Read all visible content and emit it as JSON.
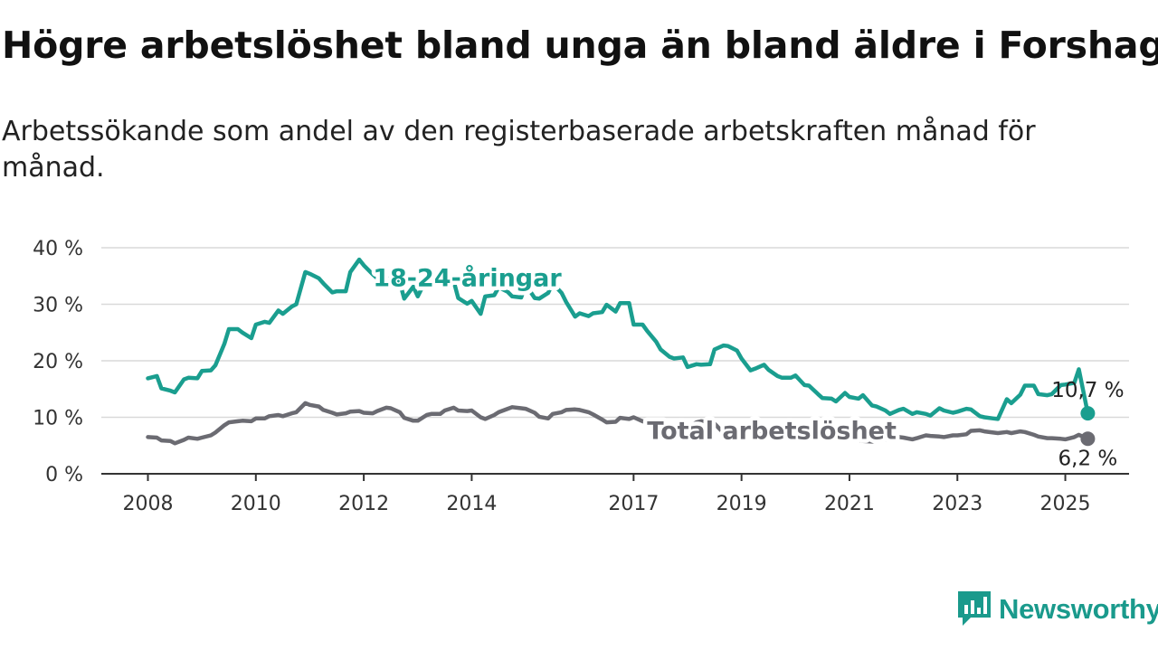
{
  "header": {
    "title": "Högre arbetslöshet bland unga än bland äldre i Forshaga",
    "subtitle": "Arbetssökande som andel av den registerbaserade arbetskraften månad för månad."
  },
  "brand": {
    "name": "Newsworthy",
    "color": "#1a9a8c"
  },
  "chart_data": {
    "type": "line",
    "title": "Högre arbetslöshet bland unga än bland äldre i Forshaga",
    "subtitle": "Arbetssökande som andel av den registerbaserade arbetskraften månad för månad.",
    "x_ticks": [
      "2008",
      "2010",
      "2012",
      "2014",
      "2017",
      "2019",
      "2021",
      "2023",
      "2025"
    ],
    "xlim": [
      "2008-01",
      "2025-06"
    ],
    "y_ticks": [
      "0 %",
      "10 %",
      "20 %",
      "30 %",
      "40 %"
    ],
    "ylim": [
      0,
      40
    ],
    "grid": true,
    "legend": "none (series labelled directly on the lines)",
    "series": [
      {
        "name": "18-24-åringar",
        "color": "#1a9e8f",
        "end_label": "10,7 %",
        "points": [
          [
            "2008-01",
            16.9
          ],
          [
            "2008-03",
            17.3
          ],
          [
            "2008-04",
            15.1
          ],
          [
            "2008-06",
            14.7
          ],
          [
            "2008-07",
            14.4
          ],
          [
            "2008-09",
            16.7
          ],
          [
            "2008-10",
            17.0
          ],
          [
            "2008-12",
            16.9
          ],
          [
            "2009-01",
            18.2
          ],
          [
            "2009-03",
            18.3
          ],
          [
            "2009-04",
            19.2
          ],
          [
            "2009-06",
            23.0
          ],
          [
            "2009-07",
            25.6
          ],
          [
            "2009-09",
            25.6
          ],
          [
            "2009-10",
            25.0
          ],
          [
            "2009-12",
            24.0
          ],
          [
            "2010-01",
            26.4
          ],
          [
            "2010-03",
            26.9
          ],
          [
            "2010-04",
            26.7
          ],
          [
            "2010-06",
            28.9
          ],
          [
            "2010-07",
            28.3
          ],
          [
            "2010-09",
            29.6
          ],
          [
            "2010-10",
            30.0
          ],
          [
            "2010-12",
            35.7
          ],
          [
            "2011-01",
            35.4
          ],
          [
            "2011-03",
            34.6
          ],
          [
            "2011-04",
            33.7
          ],
          [
            "2011-06",
            32.1
          ],
          [
            "2011-07",
            32.3
          ],
          [
            "2011-09",
            32.3
          ],
          [
            "2011-10",
            35.7
          ],
          [
            "2011-12",
            37.9
          ],
          [
            "2012-01",
            36.9
          ],
          [
            "2012-03",
            35.3
          ],
          [
            "2012-04",
            34.6
          ],
          [
            "2012-06",
            33.6
          ],
          [
            "2012-07",
            34.9
          ],
          [
            "2012-09",
            33.9
          ],
          [
            "2012-10",
            31.0
          ],
          [
            "2012-12",
            33.1
          ],
          [
            "2013-01",
            31.4
          ],
          [
            "2013-03",
            34.6
          ],
          [
            "2013-04",
            35.9
          ],
          [
            "2013-06",
            35.0
          ],
          [
            "2013-07",
            35.6
          ],
          [
            "2013-09",
            34.1
          ],
          [
            "2013-10",
            31.1
          ],
          [
            "2013-12",
            30.1
          ],
          [
            "2014-01",
            30.6
          ],
          [
            "2014-03",
            28.3
          ],
          [
            "2014-04",
            31.4
          ],
          [
            "2014-06",
            31.6
          ],
          [
            "2014-07",
            33.0
          ],
          [
            "2014-09",
            32.2
          ],
          [
            "2014-10",
            31.4
          ],
          [
            "2014-12",
            31.2
          ],
          [
            "2015-01",
            33.5
          ],
          [
            "2015-03",
            31.1
          ],
          [
            "2015-04",
            31.0
          ],
          [
            "2015-06",
            32.0
          ],
          [
            "2015-07",
            33.7
          ],
          [
            "2015-09",
            32.0
          ],
          [
            "2015-10",
            30.4
          ],
          [
            "2015-12",
            27.8
          ],
          [
            "2016-01",
            28.4
          ],
          [
            "2016-03",
            27.9
          ],
          [
            "2016-04",
            28.4
          ],
          [
            "2016-06",
            28.6
          ],
          [
            "2016-07",
            29.9
          ],
          [
            "2016-09",
            28.7
          ],
          [
            "2016-10",
            30.2
          ],
          [
            "2016-12",
            30.2
          ],
          [
            "2017-01",
            26.4
          ],
          [
            "2017-03",
            26.4
          ],
          [
            "2017-04",
            25.3
          ],
          [
            "2017-06",
            23.4
          ],
          [
            "2017-07",
            22.0
          ],
          [
            "2017-09",
            20.7
          ],
          [
            "2017-10",
            20.4
          ],
          [
            "2017-12",
            20.6
          ],
          [
            "2018-01",
            18.9
          ],
          [
            "2018-03",
            19.4
          ],
          [
            "2018-04",
            19.3
          ],
          [
            "2018-06",
            19.4
          ],
          [
            "2018-07",
            22.0
          ],
          [
            "2018-09",
            22.7
          ],
          [
            "2018-10",
            22.6
          ],
          [
            "2018-12",
            21.8
          ],
          [
            "2019-01",
            20.4
          ],
          [
            "2019-03",
            18.3
          ],
          [
            "2019-04",
            18.6
          ],
          [
            "2019-06",
            19.3
          ],
          [
            "2019-07",
            18.4
          ],
          [
            "2019-09",
            17.3
          ],
          [
            "2019-10",
            17.0
          ],
          [
            "2019-12",
            17.0
          ],
          [
            "2020-01",
            17.4
          ],
          [
            "2020-03",
            15.7
          ],
          [
            "2020-04",
            15.6
          ],
          [
            "2020-06",
            14.1
          ],
          [
            "2020-07",
            13.4
          ],
          [
            "2020-09",
            13.3
          ],
          [
            "2020-10",
            12.8
          ],
          [
            "2020-12",
            14.3
          ],
          [
            "2021-01",
            13.6
          ],
          [
            "2021-03",
            13.3
          ],
          [
            "2021-04",
            13.9
          ],
          [
            "2021-06",
            12.1
          ],
          [
            "2021-07",
            11.9
          ],
          [
            "2021-09",
            11.2
          ],
          [
            "2021-10",
            10.6
          ],
          [
            "2021-12",
            11.3
          ],
          [
            "2022-01",
            11.5
          ],
          [
            "2022-03",
            10.6
          ],
          [
            "2022-04",
            10.9
          ],
          [
            "2022-06",
            10.6
          ],
          [
            "2022-07",
            10.3
          ],
          [
            "2022-09",
            11.6
          ],
          [
            "2022-10",
            11.2
          ],
          [
            "2022-12",
            10.8
          ],
          [
            "2023-01",
            11.0
          ],
          [
            "2023-03",
            11.5
          ],
          [
            "2023-04",
            11.4
          ],
          [
            "2023-06",
            10.2
          ],
          [
            "2023-07",
            10.0
          ],
          [
            "2023-09",
            9.8
          ],
          [
            "2023-10",
            9.7
          ],
          [
            "2023-12",
            13.2
          ],
          [
            "2024-01",
            12.5
          ],
          [
            "2024-03",
            14.0
          ],
          [
            "2024-04",
            15.6
          ],
          [
            "2024-06",
            15.6
          ],
          [
            "2024-07",
            14.1
          ],
          [
            "2024-09",
            13.9
          ],
          [
            "2024-10",
            14.1
          ],
          [
            "2024-12",
            15.7
          ],
          [
            "2025-01",
            15.8
          ],
          [
            "2025-03",
            16.1
          ],
          [
            "2025-04",
            18.5
          ],
          [
            "2025-06",
            10.7
          ]
        ]
      },
      {
        "name": "Total arbetslöshet",
        "color": "#6b6b72",
        "end_label": "6,2 %",
        "points": [
          [
            "2008-01",
            6.5
          ],
          [
            "2008-03",
            6.4
          ],
          [
            "2008-04",
            5.9
          ],
          [
            "2008-06",
            5.8
          ],
          [
            "2008-07",
            5.4
          ],
          [
            "2008-09",
            6.0
          ],
          [
            "2008-10",
            6.4
          ],
          [
            "2008-12",
            6.2
          ],
          [
            "2009-01",
            6.4
          ],
          [
            "2009-03",
            6.8
          ],
          [
            "2009-04",
            7.3
          ],
          [
            "2009-06",
            8.6
          ],
          [
            "2009-07",
            9.1
          ],
          [
            "2009-09",
            9.3
          ],
          [
            "2009-10",
            9.4
          ],
          [
            "2009-12",
            9.3
          ],
          [
            "2010-01",
            9.8
          ],
          [
            "2010-03",
            9.8
          ],
          [
            "2010-04",
            10.2
          ],
          [
            "2010-06",
            10.4
          ],
          [
            "2010-07",
            10.2
          ],
          [
            "2010-09",
            10.7
          ],
          [
            "2010-10",
            10.9
          ],
          [
            "2010-12",
            12.5
          ],
          [
            "2011-01",
            12.2
          ],
          [
            "2011-03",
            11.9
          ],
          [
            "2011-04",
            11.3
          ],
          [
            "2011-06",
            10.8
          ],
          [
            "2011-07",
            10.5
          ],
          [
            "2011-09",
            10.7
          ],
          [
            "2011-10",
            11.0
          ],
          [
            "2011-12",
            11.1
          ],
          [
            "2012-01",
            10.8
          ],
          [
            "2012-03",
            10.7
          ],
          [
            "2012-04",
            11.1
          ],
          [
            "2012-06",
            11.7
          ],
          [
            "2012-07",
            11.6
          ],
          [
            "2012-09",
            10.9
          ],
          [
            "2012-10",
            9.9
          ],
          [
            "2012-12",
            9.4
          ],
          [
            "2013-01",
            9.4
          ],
          [
            "2013-03",
            10.4
          ],
          [
            "2013-04",
            10.6
          ],
          [
            "2013-06",
            10.6
          ],
          [
            "2013-07",
            11.2
          ],
          [
            "2013-09",
            11.7
          ],
          [
            "2013-10",
            11.2
          ],
          [
            "2013-12",
            11.1
          ],
          [
            "2014-01",
            11.2
          ],
          [
            "2014-03",
            10.0
          ],
          [
            "2014-04",
            9.7
          ],
          [
            "2014-06",
            10.4
          ],
          [
            "2014-07",
            10.9
          ],
          [
            "2014-09",
            11.5
          ],
          [
            "2014-10",
            11.8
          ],
          [
            "2014-12",
            11.6
          ],
          [
            "2015-01",
            11.5
          ],
          [
            "2015-03",
            10.8
          ],
          [
            "2015-04",
            10.1
          ],
          [
            "2015-06",
            9.8
          ],
          [
            "2015-07",
            10.6
          ],
          [
            "2015-09",
            10.9
          ],
          [
            "2015-10",
            11.3
          ],
          [
            "2015-12",
            11.4
          ],
          [
            "2016-01",
            11.3
          ],
          [
            "2016-03",
            10.9
          ],
          [
            "2016-04",
            10.5
          ],
          [
            "2016-06",
            9.6
          ],
          [
            "2016-07",
            9.1
          ],
          [
            "2016-09",
            9.2
          ],
          [
            "2016-10",
            9.9
          ],
          [
            "2016-12",
            9.7
          ],
          [
            "2017-01",
            10.0
          ],
          [
            "2017-03",
            9.3
          ],
          [
            "2017-04",
            9.0
          ],
          [
            "2017-06",
            8.5
          ],
          [
            "2017-07",
            8.0
          ],
          [
            "2017-09",
            7.9
          ],
          [
            "2017-10",
            7.9
          ],
          [
            "2017-12",
            7.8
          ],
          [
            "2018-01",
            8.2
          ],
          [
            "2018-03",
            9.1
          ],
          [
            "2018-04",
            9.3
          ],
          [
            "2018-06",
            9.1
          ],
          [
            "2018-07",
            8.9
          ],
          [
            "2018-09",
            7.2
          ],
          [
            "2018-10",
            7.0
          ],
          [
            "2018-12",
            7.3
          ],
          [
            "2019-01",
            7.6
          ],
          [
            "2019-03",
            7.6
          ],
          [
            "2019-04",
            7.8
          ],
          [
            "2019-06",
            7.6
          ],
          [
            "2019-07",
            7.4
          ],
          [
            "2019-09",
            7.1
          ],
          [
            "2019-10",
            6.9
          ],
          [
            "2019-12",
            6.8
          ],
          [
            "2020-01",
            6.9
          ],
          [
            "2020-03",
            6.8
          ],
          [
            "2020-04",
            6.4
          ],
          [
            "2020-06",
            6.7
          ],
          [
            "2020-07",
            6.5
          ],
          [
            "2020-09",
            6.5
          ],
          [
            "2020-10",
            6.4
          ],
          [
            "2020-12",
            6.4
          ],
          [
            "2021-01",
            6.3
          ],
          [
            "2021-03",
            6.0
          ],
          [
            "2021-04",
            5.8
          ],
          [
            "2021-06",
            5.7
          ],
          [
            "2021-07",
            5.9
          ],
          [
            "2021-09",
            6.1
          ],
          [
            "2021-10",
            6.3
          ],
          [
            "2021-12",
            6.5
          ],
          [
            "2022-01",
            6.4
          ],
          [
            "2022-03",
            6.1
          ],
          [
            "2022-04",
            6.3
          ],
          [
            "2022-06",
            6.8
          ],
          [
            "2022-07",
            6.7
          ],
          [
            "2022-09",
            6.6
          ],
          [
            "2022-10",
            6.5
          ],
          [
            "2022-12",
            6.8
          ],
          [
            "2023-01",
            6.8
          ],
          [
            "2023-03",
            7.0
          ],
          [
            "2023-04",
            7.6
          ],
          [
            "2023-06",
            7.7
          ],
          [
            "2023-07",
            7.5
          ],
          [
            "2023-09",
            7.3
          ],
          [
            "2023-10",
            7.2
          ],
          [
            "2023-12",
            7.4
          ],
          [
            "2024-01",
            7.2
          ],
          [
            "2024-03",
            7.5
          ],
          [
            "2024-04",
            7.4
          ],
          [
            "2024-06",
            6.9
          ],
          [
            "2024-07",
            6.6
          ],
          [
            "2024-09",
            6.3
          ],
          [
            "2024-10",
            6.3
          ],
          [
            "2024-12",
            6.2
          ],
          [
            "2025-01",
            6.1
          ],
          [
            "2025-03",
            6.5
          ],
          [
            "2025-04",
            6.9
          ],
          [
            "2025-06",
            6.2
          ]
        ]
      }
    ]
  }
}
